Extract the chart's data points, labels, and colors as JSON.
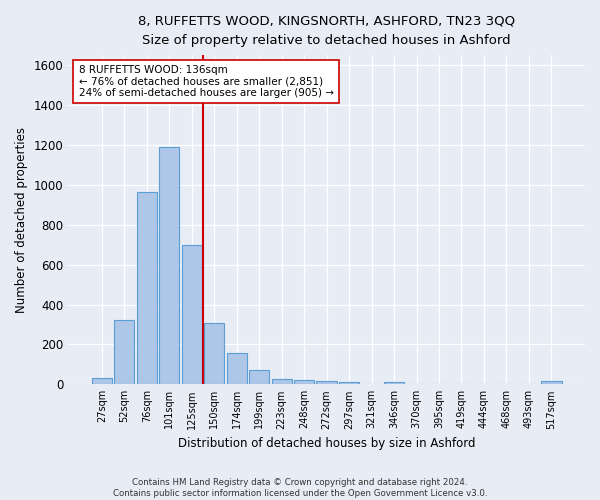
{
  "title": "8, RUFFETTS WOOD, KINGSNORTH, ASHFORD, TN23 3QQ",
  "subtitle": "Size of property relative to detached houses in Ashford",
  "xlabel": "Distribution of detached houses by size in Ashford",
  "ylabel": "Number of detached properties",
  "footer_line1": "Contains HM Land Registry data © Crown copyright and database right 2024.",
  "footer_line2": "Contains public sector information licensed under the Open Government Licence v3.0.",
  "bar_labels": [
    "27sqm",
    "52sqm",
    "76sqm",
    "101sqm",
    "125sqm",
    "150sqm",
    "174sqm",
    "199sqm",
    "223sqm",
    "248sqm",
    "272sqm",
    "297sqm",
    "321sqm",
    "346sqm",
    "370sqm",
    "395sqm",
    "419sqm",
    "444sqm",
    "468sqm",
    "493sqm",
    "517sqm"
  ],
  "bar_values": [
    30,
    320,
    965,
    1190,
    700,
    305,
    155,
    70,
    25,
    20,
    15,
    10,
    0,
    10,
    0,
    0,
    0,
    0,
    0,
    0,
    15
  ],
  "bar_color": "#aec6e8",
  "bar_edge_color": "#5a9fd4",
  "vline_x_pos": 4.5,
  "vline_color": "#cc0000",
  "ylim": [
    0,
    1650
  ],
  "yticks": [
    0,
    200,
    400,
    600,
    800,
    1000,
    1200,
    1400,
    1600
  ],
  "annotation_line1": "8 RUFFETTS WOOD: 136sqm",
  "annotation_line2": "← 76% of detached houses are smaller (2,851)",
  "annotation_line3": "24% of semi-detached houses are larger (905) →",
  "annotation_box_color": "#ffffff",
  "annotation_box_edge": "#cc0000",
  "bg_color": "#e8ecf5",
  "plot_bg_color": "#e8ecf5"
}
